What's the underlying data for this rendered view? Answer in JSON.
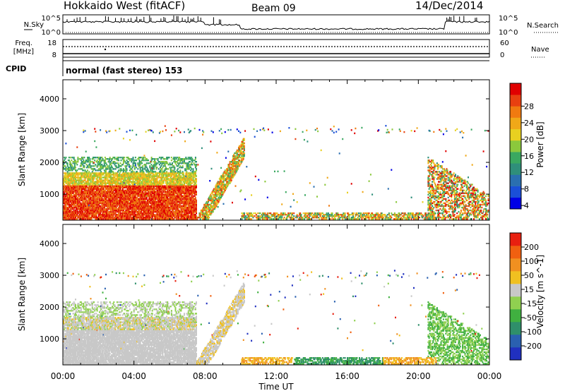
{
  "header": {
    "title": "Hokkaido West (fitACF)",
    "beam": "Beam 09",
    "date": "14/Dec/2014"
  },
  "top_panels": {
    "nsky_label": "N.Sky",
    "nsearch_label": "N.Search",
    "nsky_ticks": [
      "10^5",
      "10^0"
    ],
    "freq_label_1": "Freq.",
    "freq_label_2": "[MHz]",
    "freq_ticks": [
      "18",
      "8"
    ],
    "nave_label": "Nave",
    "nave_ticks": [
      "60",
      "0"
    ],
    "cpid_label": "CPID",
    "cpid_text": "normal (fast stereo) 153"
  },
  "chart_data": [
    {
      "type": "heatmap",
      "title": "",
      "xlabel": "",
      "ylabel": "Slant Range [km]",
      "xlim_hours": [
        0,
        24
      ],
      "ylim": [
        180,
        4600
      ],
      "x_ticks": [
        "00:00",
        "04:00",
        "08:00",
        "12:00",
        "16:00",
        "20:00",
        "00:00"
      ],
      "y_ticks": [
        1000,
        2000,
        3000,
        4000
      ],
      "colorbar": {
        "label": "Power [dB]",
        "ticks": [
          "28",
          "24",
          "20",
          "16",
          "12",
          "8",
          "4"
        ],
        "colors": [
          "#0000e6",
          "#1a4fd8",
          "#2a6fb0",
          "#2f8f7a",
          "#3aa860",
          "#8bc83c",
          "#e8d020",
          "#f0a818",
          "#f07a10",
          "#e84010",
          "#e00000"
        ]
      }
    },
    {
      "type": "heatmap",
      "title": "",
      "xlabel": "Time UT",
      "ylabel": "Slant Range [km]",
      "xlim_hours": [
        0,
        24
      ],
      "ylim": [
        180,
        4600
      ],
      "x_ticks": [
        "00:00",
        "04:00",
        "08:00",
        "12:00",
        "16:00",
        "20:00",
        "00:00"
      ],
      "y_ticks": [
        1000,
        2000,
        3000,
        4000
      ],
      "colorbar": {
        "label": "Velocity [m s^-1]",
        "ticks": [
          "200",
          "100",
          "50",
          "15",
          "-15",
          "-50",
          "-100",
          "-200"
        ],
        "colors": [
          "#2030c0",
          "#2a60b0",
          "#2f8f6a",
          "#40b040",
          "#90d050",
          "#c8c8c8",
          "#f0c020",
          "#f09020",
          "#f06010",
          "#e82010"
        ]
      }
    }
  ]
}
